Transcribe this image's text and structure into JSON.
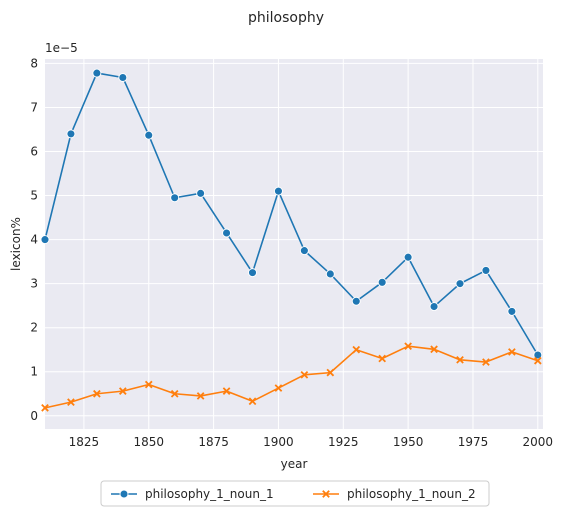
{
  "chart_data": {
    "type": "line",
    "title": "philosophy",
    "xlabel": "year",
    "ylabel": "lexicon%",
    "y_scale_label": "1e−5",
    "xlim": [
      1810,
      2002
    ],
    "ylim": [
      -0.3,
      8.1
    ],
    "x_ticks": [
      1825,
      1850,
      1875,
      1900,
      1925,
      1950,
      1975,
      2000
    ],
    "y_ticks": [
      0,
      1,
      2,
      3,
      4,
      5,
      6,
      7,
      8
    ],
    "grid": true,
    "legend_position": "bottom-center",
    "x": [
      1810,
      1820,
      1830,
      1840,
      1850,
      1860,
      1870,
      1880,
      1890,
      1900,
      1910,
      1920,
      1930,
      1940,
      1950,
      1960,
      1970,
      1980,
      1990,
      2000
    ],
    "series": [
      {
        "name": "philosophy_1_noun_1",
        "color": "#1f77b4",
        "marker": "circle",
        "values": [
          4.0,
          6.4,
          7.78,
          7.68,
          6.37,
          4.95,
          5.05,
          4.15,
          3.25,
          5.1,
          3.75,
          3.22,
          2.6,
          3.03,
          3.6,
          2.48,
          3.0,
          3.3,
          2.37,
          1.38
        ]
      },
      {
        "name": "philosophy_1_noun_2",
        "color": "#ff7f0e",
        "marker": "x",
        "values": [
          0.18,
          0.31,
          0.5,
          0.56,
          0.71,
          0.5,
          0.45,
          0.56,
          0.33,
          0.63,
          0.93,
          0.98,
          1.5,
          1.3,
          1.58,
          1.51,
          1.27,
          1.22,
          1.45,
          1.25
        ]
      }
    ]
  }
}
